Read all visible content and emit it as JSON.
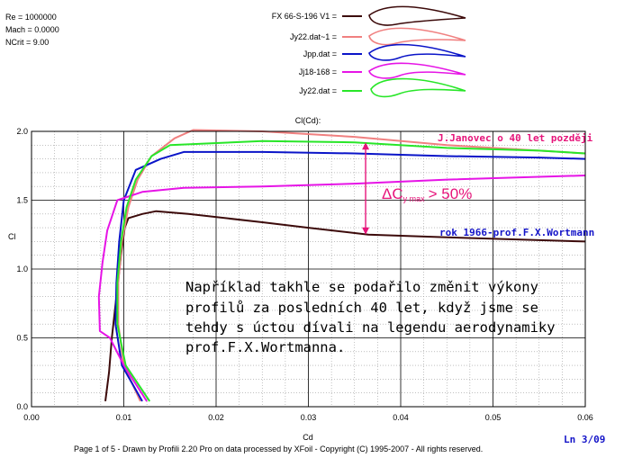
{
  "run_params": [
    "Re = 1000000",
    "Mach = 0.0000",
    "NCrit = 9.00"
  ],
  "legend": [
    {
      "label": "FX 66-S-196 V1 =",
      "color": "#3c0a0a"
    },
    {
      "label": "Jy22.dat~1 =",
      "color": "#f08080"
    },
    {
      "label": "Jpp.dat =",
      "color": "#0a14c8"
    },
    {
      "label": "Jj18-168 =",
      "color": "#e614e6"
    },
    {
      "label": "Jy22.dat =",
      "color": "#28e628"
    }
  ],
  "chart_data": {
    "type": "line",
    "title": "Cl(Cd):",
    "xlabel": "Cd",
    "ylabel": "Cl",
    "xlim": [
      0.0,
      0.06
    ],
    "ylim": [
      0.0,
      2.0
    ],
    "x_ticks": [
      "0.00",
      "0.01",
      "0.02",
      "0.03",
      "0.04",
      "0.05",
      "0.06"
    ],
    "y_ticks": [
      "0.0",
      "0.5",
      "1.0",
      "1.5",
      "2.0"
    ],
    "grid": true,
    "series": [
      {
        "name": "FX 66-S-196 V1",
        "color": "#3c0a0a",
        "points": [
          [
            0.008,
            0.04
          ],
          [
            0.0084,
            0.25
          ],
          [
            0.0087,
            0.5
          ],
          [
            0.0092,
            0.8
          ],
          [
            0.0097,
            1.1
          ],
          [
            0.0101,
            1.3
          ],
          [
            0.0105,
            1.37
          ],
          [
            0.012,
            1.4
          ],
          [
            0.0135,
            1.42
          ],
          [
            0.017,
            1.4
          ],
          [
            0.025,
            1.34
          ],
          [
            0.03,
            1.3
          ],
          [
            0.0365,
            1.25
          ],
          [
            0.045,
            1.23
          ],
          [
            0.055,
            1.21
          ],
          [
            0.06,
            1.2
          ]
        ]
      },
      {
        "name": "Jy22.dat~1",
        "color": "#f08080",
        "points": [
          [
            0.0118,
            0.04
          ],
          [
            0.01,
            0.3
          ],
          [
            0.0094,
            0.6
          ],
          [
            0.0094,
            0.9
          ],
          [
            0.0098,
            1.2
          ],
          [
            0.0105,
            1.45
          ],
          [
            0.0115,
            1.65
          ],
          [
            0.013,
            1.82
          ],
          [
            0.0155,
            1.95
          ],
          [
            0.0175,
            2.01
          ],
          [
            0.025,
            2.0
          ],
          [
            0.035,
            1.96
          ],
          [
            0.045,
            1.9
          ],
          [
            0.055,
            1.86
          ],
          [
            0.06,
            1.84
          ]
        ]
      },
      {
        "name": "Jpp.dat",
        "color": "#0a14c8",
        "points": [
          [
            0.012,
            0.04
          ],
          [
            0.0098,
            0.3
          ],
          [
            0.0091,
            0.6
          ],
          [
            0.0092,
            0.9
          ],
          [
            0.0095,
            1.2
          ],
          [
            0.01,
            1.5
          ],
          [
            0.0113,
            1.72
          ],
          [
            0.014,
            1.8
          ],
          [
            0.0165,
            1.85
          ],
          [
            0.025,
            1.85
          ],
          [
            0.035,
            1.84
          ],
          [
            0.045,
            1.82
          ],
          [
            0.055,
            1.81
          ],
          [
            0.06,
            1.8
          ]
        ]
      },
      {
        "name": "Jj18-168",
        "color": "#e614e6",
        "points": [
          [
            0.0125,
            0.04
          ],
          [
            0.01,
            0.3
          ],
          [
            0.0085,
            0.5
          ],
          [
            0.0074,
            0.55
          ],
          [
            0.0073,
            0.8
          ],
          [
            0.0077,
            1.05
          ],
          [
            0.0082,
            1.28
          ],
          [
            0.0093,
            1.5
          ],
          [
            0.012,
            1.56
          ],
          [
            0.0165,
            1.59
          ],
          [
            0.025,
            1.6
          ],
          [
            0.035,
            1.62
          ],
          [
            0.045,
            1.65
          ],
          [
            0.055,
            1.67
          ],
          [
            0.06,
            1.68
          ]
        ]
      },
      {
        "name": "Jy22.dat",
        "color": "#28e628",
        "points": [
          [
            0.0128,
            0.04
          ],
          [
            0.0102,
            0.3
          ],
          [
            0.0093,
            0.6
          ],
          [
            0.0093,
            0.9
          ],
          [
            0.0097,
            1.2
          ],
          [
            0.0103,
            1.45
          ],
          [
            0.0113,
            1.65
          ],
          [
            0.013,
            1.82
          ],
          [
            0.015,
            1.9
          ],
          [
            0.025,
            1.93
          ],
          [
            0.035,
            1.92
          ],
          [
            0.045,
            1.88
          ],
          [
            0.055,
            1.86
          ],
          [
            0.06,
            1.84
          ]
        ]
      }
    ],
    "annotations": {
      "top_note": "J.Janovec o 40 let později",
      "bottom_note": "rok 1966-prof.F.X.Wortmann",
      "delta_prefix": "ΔC",
      "delta_sub": "y max",
      "delta_suffix": "> 50%",
      "paragraph": [
        "Například takhle se podařilo změnit výkony",
        "profilů za posledních 40 let, když jsme se",
        "tehdy s úctou dívali na legendu aerodynamiky",
        "prof.F.X.Wortmanna."
      ],
      "arrow_color": "#e6147a",
      "arrow_x": 0.0362,
      "arrow_y_top": 1.92,
      "arrow_y_bottom": 1.25
    }
  },
  "footer": {
    "text": "Page 1 of 5   -   Drawn by Profili 2.20 Pro on data processed by  XFoil - Copyright (C) 1995-2007 - All rights reserved.",
    "line_indicator": "Ln 3/09"
  }
}
